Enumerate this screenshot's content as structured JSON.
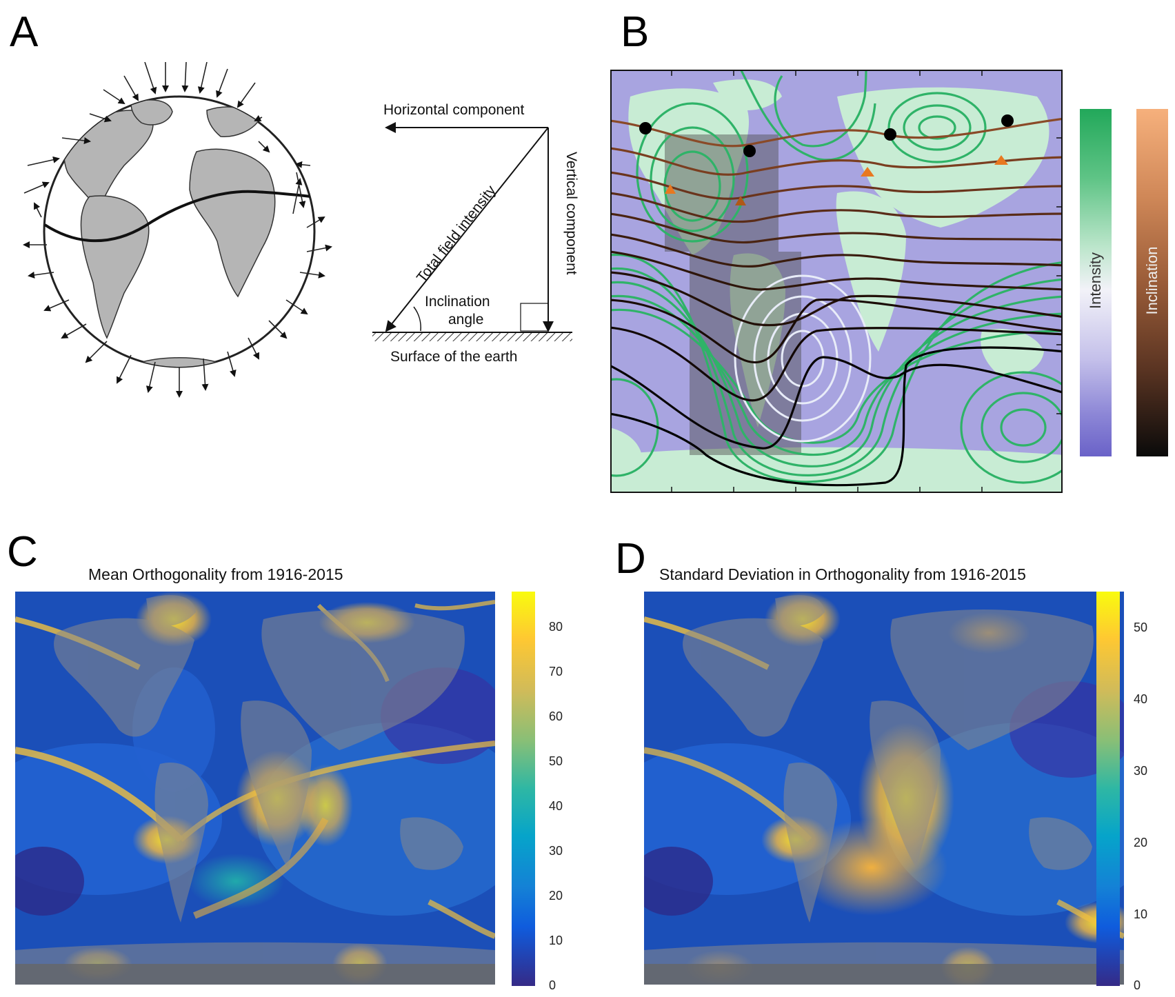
{
  "panels": {
    "a": {
      "letter": "A"
    },
    "b": {
      "letter": "B"
    },
    "c": {
      "letter": "C",
      "title": "Mean Orthogonality from 1916-2015"
    },
    "d": {
      "letter": "D",
      "title": "Standard Deviation in Orthogonality from 1916-2015"
    }
  },
  "diagram_a": {
    "horizontal_component": "Horizontal component",
    "vertical_component": "Vertical component",
    "total_field_intensity": "Total field intensity",
    "inclination_angle_line1": "Inclination",
    "inclination_angle_line2": "angle",
    "surface": "Surface of the earth"
  },
  "map_b": {
    "colorbar_intensity": "Intensity",
    "colorbar_inclination": "Inclination",
    "colors": {
      "intensity_top": "#22a85a",
      "intensity_mid": "#f2f2f8",
      "intensity_bottom": "#6a62c8",
      "inclination_top": "#f6b07c",
      "inclination_bottom": "#0a0a0a",
      "marker_circle": "#000000",
      "marker_triangle": "#e87820"
    }
  },
  "chart_data": [
    {
      "type": "heatmap",
      "title": "Mean Orthogonality from 1916-2015",
      "colorbar_ticks": [
        "0",
        "10",
        "20",
        "30",
        "40",
        "50",
        "60",
        "70",
        "80"
      ],
      "colorbar_range": [
        0,
        87
      ],
      "colormap": "parula"
    },
    {
      "type": "heatmap",
      "title": "Standard Deviation in Orthogonality from 1916-2015",
      "colorbar_ticks": [
        "0",
        "10",
        "20",
        "30",
        "40",
        "50"
      ],
      "colorbar_range": [
        0,
        55
      ],
      "colormap": "parula"
    }
  ]
}
